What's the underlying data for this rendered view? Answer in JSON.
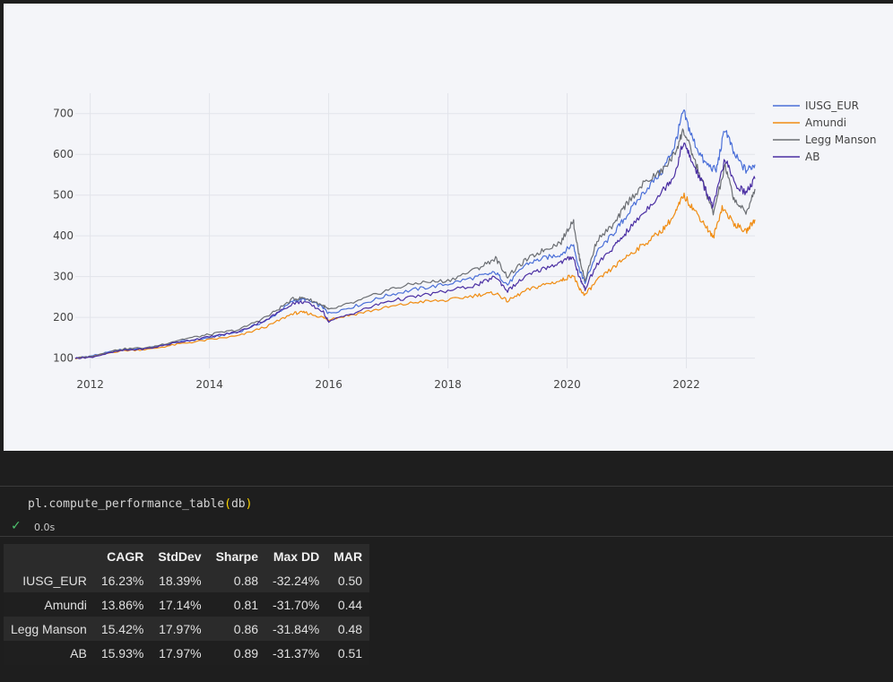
{
  "chart_data": {
    "type": "line",
    "x_ticks": [
      "2012",
      "2014",
      "2016",
      "2018",
      "2020",
      "2022"
    ],
    "y_ticks": [
      100,
      200,
      300,
      400,
      500,
      600,
      700
    ],
    "xlim": [
      2011.75,
      2023.15
    ],
    "ylim": [
      75,
      750
    ],
    "grid": true,
    "legend_position": "right",
    "series": [
      {
        "name": "IUSG_EUR",
        "color": "#4a6fd8",
        "points": [
          [
            2011.75,
            100
          ],
          [
            2012,
            105
          ],
          [
            2012.5,
            120
          ],
          [
            2013,
            125
          ],
          [
            2013.5,
            140
          ],
          [
            2014,
            150
          ],
          [
            2014.5,
            165
          ],
          [
            2015,
            195
          ],
          [
            2015.4,
            240
          ],
          [
            2015.6,
            245
          ],
          [
            2015.9,
            225
          ],
          [
            2016,
            210
          ],
          [
            2016.5,
            230
          ],
          [
            2017,
            255
          ],
          [
            2017.5,
            270
          ],
          [
            2018,
            282
          ],
          [
            2018.5,
            300
          ],
          [
            2018.8,
            310
          ],
          [
            2019,
            280
          ],
          [
            2019.3,
            330
          ],
          [
            2019.6,
            345
          ],
          [
            2019.9,
            355
          ],
          [
            2020.1,
            380
          ],
          [
            2020.2,
            320
          ],
          [
            2020.3,
            285
          ],
          [
            2020.5,
            360
          ],
          [
            2020.8,
            410
          ],
          [
            2021,
            450
          ],
          [
            2021.3,
            510
          ],
          [
            2021.6,
            560
          ],
          [
            2021.8,
            620
          ],
          [
            2021.95,
            705
          ],
          [
            2022.1,
            640
          ],
          [
            2022.3,
            580
          ],
          [
            2022.5,
            560
          ],
          [
            2022.65,
            665
          ],
          [
            2022.8,
            600
          ],
          [
            2023,
            560
          ],
          [
            2023.15,
            575
          ]
        ]
      },
      {
        "name": "Amundi",
        "color": "#f08c12",
        "points": [
          [
            2011.75,
            100
          ],
          [
            2012,
            103
          ],
          [
            2012.5,
            118
          ],
          [
            2013,
            122
          ],
          [
            2013.5,
            135
          ],
          [
            2014,
            145
          ],
          [
            2014.5,
            155
          ],
          [
            2015,
            180
          ],
          [
            2015.4,
            210
          ],
          [
            2015.6,
            212
          ],
          [
            2015.9,
            200
          ],
          [
            2016,
            195
          ],
          [
            2016.5,
            210
          ],
          [
            2017,
            225
          ],
          [
            2017.5,
            238
          ],
          [
            2018,
            242
          ],
          [
            2018.5,
            255
          ],
          [
            2018.8,
            260
          ],
          [
            2019,
            240
          ],
          [
            2019.3,
            265
          ],
          [
            2019.6,
            280
          ],
          [
            2019.9,
            290
          ],
          [
            2020.1,
            305
          ],
          [
            2020.2,
            270
          ],
          [
            2020.3,
            255
          ],
          [
            2020.5,
            290
          ],
          [
            2020.8,
            325
          ],
          [
            2021,
            350
          ],
          [
            2021.3,
            380
          ],
          [
            2021.6,
            415
          ],
          [
            2021.8,
            450
          ],
          [
            2021.95,
            500
          ],
          [
            2022.1,
            470
          ],
          [
            2022.3,
            430
          ],
          [
            2022.45,
            395
          ],
          [
            2022.6,
            470
          ],
          [
            2022.8,
            430
          ],
          [
            2023,
            410
          ],
          [
            2023.15,
            440
          ]
        ]
      },
      {
        "name": "Legg Manson",
        "color": "#6b6e73",
        "points": [
          [
            2011.75,
            100
          ],
          [
            2012,
            104
          ],
          [
            2012.5,
            122
          ],
          [
            2013,
            126
          ],
          [
            2013.5,
            145
          ],
          [
            2014,
            158
          ],
          [
            2014.5,
            170
          ],
          [
            2015,
            205
          ],
          [
            2015.4,
            245
          ],
          [
            2015.6,
            248
          ],
          [
            2015.9,
            230
          ],
          [
            2016,
            218
          ],
          [
            2016.5,
            240
          ],
          [
            2017,
            268
          ],
          [
            2017.5,
            285
          ],
          [
            2018,
            290
          ],
          [
            2018.5,
            320
          ],
          [
            2018.8,
            345
          ],
          [
            2019,
            300
          ],
          [
            2019.3,
            340
          ],
          [
            2019.6,
            365
          ],
          [
            2019.9,
            385
          ],
          [
            2020.1,
            440
          ],
          [
            2020.2,
            350
          ],
          [
            2020.3,
            290
          ],
          [
            2020.5,
            390
          ],
          [
            2020.8,
            430
          ],
          [
            2021,
            480
          ],
          [
            2021.3,
            530
          ],
          [
            2021.6,
            560
          ],
          [
            2021.8,
            600
          ],
          [
            2021.95,
            660
          ],
          [
            2022.1,
            600
          ],
          [
            2022.3,
            520
          ],
          [
            2022.45,
            455
          ],
          [
            2022.65,
            570
          ],
          [
            2022.8,
            490
          ],
          [
            2023,
            455
          ],
          [
            2023.15,
            515
          ]
        ]
      },
      {
        "name": "AB",
        "color": "#4b2fa3",
        "points": [
          [
            2011.75,
            100
          ],
          [
            2012,
            102
          ],
          [
            2012.5,
            118
          ],
          [
            2013,
            124
          ],
          [
            2013.5,
            140
          ],
          [
            2014,
            152
          ],
          [
            2014.5,
            165
          ],
          [
            2015,
            198
          ],
          [
            2015.4,
            235
          ],
          [
            2015.6,
            238
          ],
          [
            2015.9,
            215
          ],
          [
            2016,
            190
          ],
          [
            2016.5,
            215
          ],
          [
            2017,
            240
          ],
          [
            2017.5,
            252
          ],
          [
            2018,
            265
          ],
          [
            2018.5,
            280
          ],
          [
            2018.8,
            300
          ],
          [
            2019,
            265
          ],
          [
            2019.3,
            300
          ],
          [
            2019.6,
            320
          ],
          [
            2019.9,
            335
          ],
          [
            2020.1,
            350
          ],
          [
            2020.2,
            300
          ],
          [
            2020.3,
            270
          ],
          [
            2020.5,
            330
          ],
          [
            2020.8,
            375
          ],
          [
            2021,
            410
          ],
          [
            2021.3,
            460
          ],
          [
            2021.6,
            510
          ],
          [
            2021.8,
            550
          ],
          [
            2021.95,
            630
          ],
          [
            2022.1,
            580
          ],
          [
            2022.3,
            520
          ],
          [
            2022.45,
            470
          ],
          [
            2022.65,
            590
          ],
          [
            2022.8,
            530
          ],
          [
            2023,
            505
          ],
          [
            2023.15,
            540
          ]
        ]
      }
    ]
  },
  "code": {
    "text": "pl.compute_performance_table",
    "open": "(",
    "arg": "db",
    "close": ")"
  },
  "status": {
    "check": "✓",
    "time": "0.0s"
  },
  "table": {
    "columns": [
      "",
      "CAGR",
      "StdDev",
      "Sharpe",
      "Max DD",
      "MAR"
    ],
    "rows": [
      [
        "IUSG_EUR",
        "16.23%",
        "18.39%",
        "0.88",
        "-32.24%",
        "0.50"
      ],
      [
        "Amundi",
        "13.86%",
        "17.14%",
        "0.81",
        "-31.70%",
        "0.44"
      ],
      [
        "Legg Manson",
        "15.42%",
        "17.97%",
        "0.86",
        "-31.84%",
        "0.48"
      ],
      [
        "AB",
        "15.93%",
        "17.97%",
        "0.89",
        "-31.37%",
        "0.51"
      ]
    ]
  }
}
